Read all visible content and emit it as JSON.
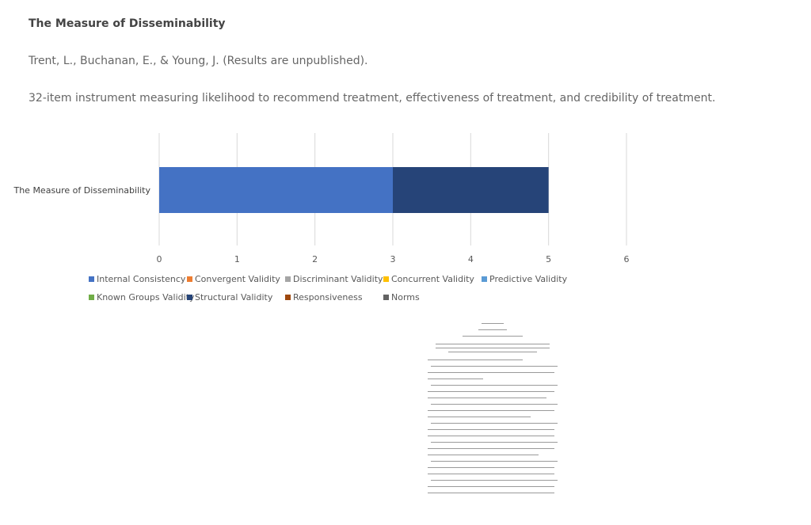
{
  "page": {
    "title": "The Measure of Disseminability",
    "citation": "Trent, L., Buchanan, E., & Young, J. (Results are unpublished).",
    "description": "32-item instrument measuring likelihood to recommend treatment, effectiveness of treatment, and credibility of treatment."
  },
  "chart_data": {
    "type": "bar",
    "orientation": "horizontal",
    "stacked": true,
    "categories": [
      "The Measure of Disseminability"
    ],
    "series": [
      {
        "name": "Internal Consistency",
        "values": [
          3
        ],
        "color": "#4472c4"
      },
      {
        "name": "Convergent Validity",
        "values": [
          0
        ],
        "color": "#ed7d31"
      },
      {
        "name": "Discriminant Validity",
        "values": [
          0
        ],
        "color": "#a5a5a5"
      },
      {
        "name": "Concurrent Validity",
        "values": [
          0
        ],
        "color": "#ffc000"
      },
      {
        "name": "Predictive Validity",
        "values": [
          0
        ],
        "color": "#5b9bd5"
      },
      {
        "name": "Known Groups Validity",
        "values": [
          0
        ],
        "color": "#70ad47"
      },
      {
        "name": "Structural Validity",
        "values": [
          2
        ],
        "color": "#264478"
      },
      {
        "name": "Responsiveness",
        "values": [
          0
        ],
        "color": "#9e480e"
      },
      {
        "name": "Norms",
        "values": [
          0
        ],
        "color": "#636363"
      }
    ],
    "xlim": [
      0,
      6
    ],
    "xticks": [
      "0",
      "1",
      "2",
      "3",
      "4",
      "5",
      "6"
    ],
    "grid": true,
    "legend_position": "bottom"
  },
  "thumbnail": {
    "icon": "document-page-icon"
  }
}
